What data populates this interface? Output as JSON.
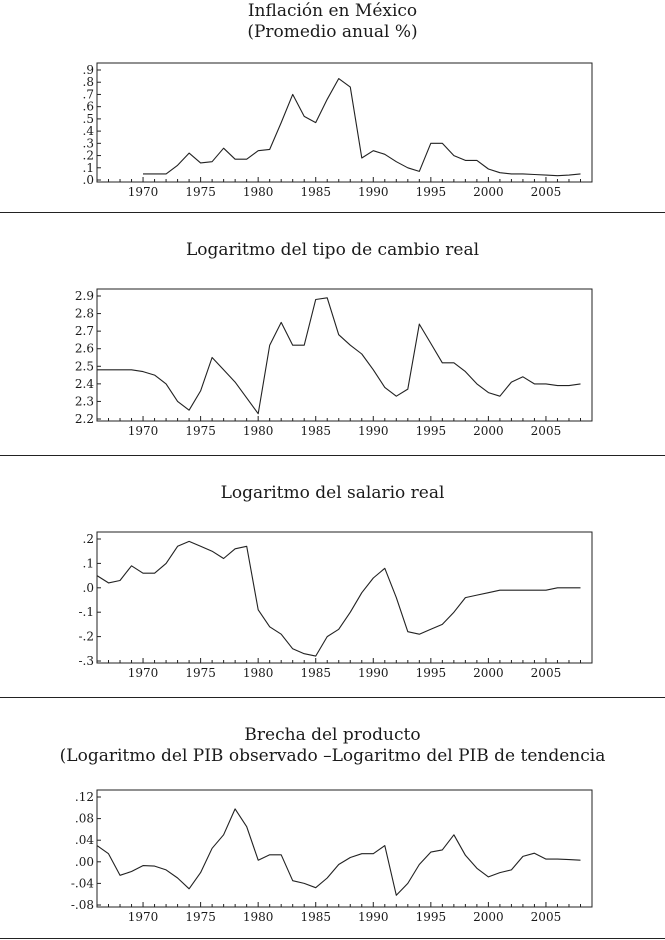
{
  "panels": [
    {
      "title_line1": "Inflación en México",
      "title_line2": "(Promedio anual %)"
    },
    {
      "title_line1": "Logaritmo del tipo de cambio real"
    },
    {
      "title_line1": "Logaritmo del salario real"
    },
    {
      "title_line1": "Brecha del producto",
      "title_line2": "(Logaritmo del PIB observado –Logaritmo del PIB de tendencia"
    }
  ],
  "chart_data": [
    {
      "type": "line",
      "title": "Inflación en México",
      "subtitle": "(Promedio anual %)",
      "xlim": [
        1966,
        2009
      ],
      "ylim": [
        0,
        0.9
      ],
      "y_ticks": [
        ".9",
        ".8",
        ".7",
        ".6",
        ".5",
        ".4",
        ".3",
        ".2",
        ".1",
        ".0"
      ],
      "x_ticks": [
        "1970",
        "1975",
        "1980",
        "1985",
        "1990",
        "1995",
        "2000",
        "2005"
      ],
      "x": [
        1970,
        1971,
        1972,
        1973,
        1974,
        1975,
        1976,
        1977,
        1978,
        1979,
        1980,
        1981,
        1982,
        1983,
        1984,
        1985,
        1986,
        1987,
        1988,
        1989,
        1990,
        1991,
        1992,
        1993,
        1994,
        1995,
        1996,
        1997,
        1998,
        1999,
        2000,
        2001,
        2002,
        2003,
        2004,
        2005,
        2006,
        2007,
        2008
      ],
      "series": [
        {
          "name": "Inflación",
          "values": [
            0.05,
            0.05,
            0.05,
            0.12,
            0.22,
            0.14,
            0.15,
            0.26,
            0.17,
            0.17,
            0.24,
            0.25,
            0.47,
            0.7,
            0.52,
            0.47,
            0.66,
            0.83,
            0.76,
            0.18,
            0.24,
            0.21,
            0.15,
            0.1,
            0.07,
            0.3,
            0.3,
            0.2,
            0.16,
            0.16,
            0.09,
            0.06,
            0.05,
            0.05,
            0.045,
            0.04,
            0.035,
            0.04,
            0.05
          ]
        }
      ]
    },
    {
      "type": "line",
      "title": "Logaritmo del tipo de cambio real",
      "xlim": [
        1966,
        2009
      ],
      "ylim": [
        2.2,
        2.9
      ],
      "y_ticks": [
        "2.9",
        "2.8",
        "2.7",
        "2.6",
        "2.5",
        "2.4",
        "2.3",
        "2.2"
      ],
      "x_ticks": [
        "1970",
        "1975",
        "1980",
        "1985",
        "1990",
        "1995",
        "2000",
        "2005"
      ],
      "x": [
        1966,
        1967,
        1968,
        1969,
        1970,
        1971,
        1972,
        1973,
        1974,
        1975,
        1976,
        1977,
        1978,
        1979,
        1980,
        1981,
        1982,
        1983,
        1984,
        1985,
        1986,
        1987,
        1988,
        1989,
        1990,
        1991,
        1992,
        1993,
        1994,
        1995,
        1996,
        1997,
        1998,
        1999,
        2000,
        2001,
        2002,
        2003,
        2004,
        2005,
        2006,
        2007,
        2008
      ],
      "series": [
        {
          "name": "Tipo de cambio real",
          "values": [
            2.48,
            2.48,
            2.48,
            2.48,
            2.47,
            2.45,
            2.4,
            2.3,
            2.25,
            2.36,
            2.55,
            2.48,
            2.41,
            2.32,
            2.23,
            2.62,
            2.75,
            2.62,
            2.62,
            2.88,
            2.89,
            2.68,
            2.62,
            2.57,
            2.48,
            2.38,
            2.33,
            2.37,
            2.74,
            2.63,
            2.52,
            2.52,
            2.47,
            2.4,
            2.35,
            2.33,
            2.41,
            2.44,
            2.4,
            2.4,
            2.39,
            2.39,
            2.4
          ]
        }
      ]
    },
    {
      "type": "line",
      "title": "Logaritmo del salario real",
      "xlim": [
        1966,
        2009
      ],
      "ylim": [
        -0.3,
        0.2
      ],
      "y_ticks": [
        ".2",
        ".1",
        ".0",
        "-.1",
        "-.2",
        "-.3"
      ],
      "x_ticks": [
        "1970",
        "1975",
        "1980",
        "1985",
        "1990",
        "1995",
        "2000",
        "2005"
      ],
      "x": [
        1966,
        1967,
        1968,
        1969,
        1970,
        1971,
        1972,
        1973,
        1974,
        1975,
        1976,
        1977,
        1978,
        1979,
        1980,
        1981,
        1982,
        1983,
        1984,
        1985,
        1986,
        1987,
        1988,
        1989,
        1990,
        1991,
        1992,
        1993,
        1994,
        1995,
        1996,
        1997,
        1998,
        1999,
        2000,
        2001,
        2002,
        2003,
        2004,
        2005,
        2006,
        2007,
        2008
      ],
      "series": [
        {
          "name": "Salario real",
          "values": [
            0.05,
            0.02,
            0.03,
            0.09,
            0.06,
            0.06,
            0.1,
            0.17,
            0.19,
            0.17,
            0.15,
            0.12,
            0.16,
            0.17,
            -0.09,
            -0.16,
            -0.19,
            -0.25,
            -0.27,
            -0.28,
            -0.2,
            -0.17,
            -0.1,
            -0.02,
            0.04,
            0.08,
            -0.04,
            -0.18,
            -0.19,
            -0.17,
            -0.15,
            -0.1,
            -0.04,
            -0.03,
            -0.02,
            -0.01,
            -0.01,
            -0.01,
            -0.01,
            -0.01,
            0.0,
            0.0,
            0.0
          ]
        }
      ]
    },
    {
      "type": "line",
      "title": "Brecha del producto",
      "subtitle": "(Logaritmo del PIB observado –Logaritmo del PIB de tendencia",
      "xlim": [
        1966,
        2009
      ],
      "ylim": [
        -0.08,
        0.12
      ],
      "y_ticks": [
        ".12",
        ".08",
        ".04",
        ".00",
        "-.04",
        "-.08"
      ],
      "x_ticks": [
        "1970",
        "1975",
        "1980",
        "1985",
        "1990",
        "1995",
        "2000",
        "2005"
      ],
      "x": [
        1966,
        1967,
        1968,
        1969,
        1970,
        1971,
        1972,
        1973,
        1974,
        1975,
        1976,
        1977,
        1978,
        1979,
        1980,
        1981,
        1982,
        1983,
        1984,
        1985,
        1986,
        1987,
        1988,
        1989,
        1990,
        1991,
        1992,
        1993,
        1994,
        1995,
        1996,
        1997,
        1998,
        1999,
        2000,
        2001,
        2002,
        2003,
        2004,
        2005,
        2006,
        2007,
        2008
      ],
      "series": [
        {
          "name": "Brecha",
          "values": [
            0.03,
            0.015,
            -0.025,
            -0.018,
            -0.007,
            -0.008,
            -0.015,
            -0.03,
            -0.05,
            -0.02,
            0.025,
            0.05,
            0.098,
            0.065,
            0.003,
            0.013,
            0.013,
            -0.035,
            -0.04,
            -0.048,
            -0.03,
            -0.005,
            0.008,
            0.015,
            0.015,
            0.03,
            -0.062,
            -0.04,
            -0.005,
            0.018,
            0.022,
            0.05,
            0.012,
            -0.012,
            -0.028,
            -0.02,
            -0.015,
            0.01,
            0.016,
            0.005,
            0.005,
            0.004,
            0.003
          ]
        }
      ]
    }
  ]
}
